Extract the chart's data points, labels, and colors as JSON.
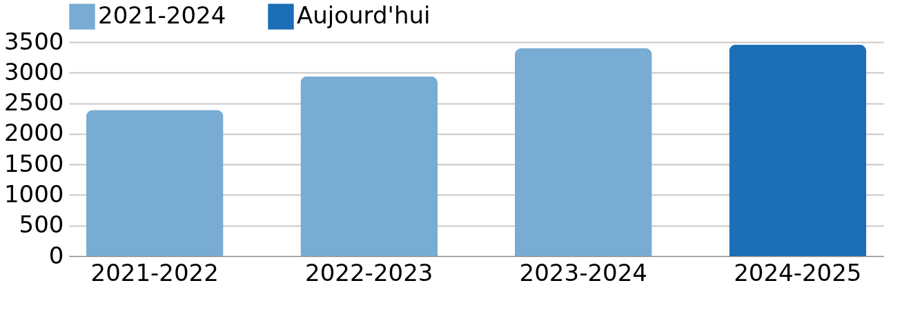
{
  "chart_data": {
    "type": "bar",
    "categories": [
      "2021-2022",
      "2022-2023",
      "2023-2024",
      "2024-2025"
    ],
    "series": [
      {
        "name": "2021-2024",
        "color": "#78acd2",
        "values": [
          2390,
          2940,
          3400,
          null
        ]
      },
      {
        "name": "Aujourd'hui",
        "color": "#1c6fb6",
        "values": [
          null,
          null,
          null,
          3460
        ]
      }
    ],
    "ylim": [
      0,
      3500
    ],
    "yticks": [
      0,
      500,
      1000,
      1500,
      2000,
      2500,
      3000,
      3500
    ],
    "grid": "y",
    "legend": "top"
  }
}
